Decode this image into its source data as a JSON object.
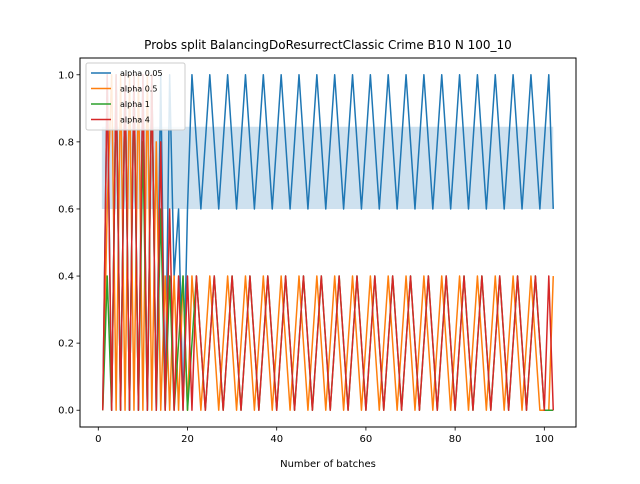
{
  "chart_data": {
    "type": "line",
    "title": "Probs split BalancingDoResurrectClassic Crime B10 N 100_10",
    "xlabel": "Number of batches",
    "ylabel": "",
    "xlim": [
      -4.1,
      107.1
    ],
    "ylim": [
      -0.05,
      1.05
    ],
    "xticks": [
      0,
      20,
      40,
      60,
      80,
      100
    ],
    "xtick_labels": [
      "0",
      "20",
      "40",
      "60",
      "80",
      "100"
    ],
    "yticks": [
      0.0,
      0.2,
      0.4,
      0.6,
      0.8,
      1.0
    ],
    "ytick_labels": [
      "0.0",
      "0.2",
      "0.4",
      "0.6",
      "0.8",
      "1.0"
    ],
    "grid": false,
    "legend_position": "upper left",
    "series": [
      {
        "name": "alpha 0.05",
        "color": "#1f77b4",
        "x": [
          1,
          2,
          3,
          4,
          5,
          6,
          7,
          8,
          9,
          10,
          11,
          12,
          13,
          14,
          15,
          16,
          17,
          18,
          19,
          20,
          21,
          23,
          25,
          27,
          29,
          31,
          33,
          35,
          37,
          39,
          41,
          43,
          45,
          47,
          49,
          51,
          53,
          55,
          57,
          59,
          61,
          63,
          65,
          67,
          69,
          71,
          73,
          75,
          77,
          79,
          81,
          83,
          85,
          87,
          89,
          91,
          93,
          95,
          97,
          99,
          101,
          102
        ],
        "y": [
          0.0,
          1.0,
          0.0,
          1.0,
          0.0,
          1.0,
          0.0,
          1.0,
          0.0,
          1.0,
          0.0,
          1.0,
          0.0,
          1.0,
          0.0,
          1.0,
          0.4,
          0.6,
          0.0,
          0.6,
          1.0,
          0.6,
          1.0,
          0.6,
          1.0,
          0.6,
          1.0,
          0.6,
          1.0,
          0.6,
          1.0,
          0.6,
          1.0,
          0.6,
          1.0,
          0.6,
          1.0,
          0.6,
          1.0,
          0.6,
          1.0,
          0.6,
          1.0,
          0.6,
          1.0,
          0.6,
          1.0,
          0.6,
          1.0,
          0.6,
          1.0,
          0.6,
          1.0,
          0.6,
          1.0,
          0.6,
          1.0,
          0.6,
          1.0,
          0.6,
          1.0,
          0.6
        ],
        "band": {
          "x": [
            0.8,
            102
          ],
          "lower": [
            0.6,
            0.6
          ],
          "upper": [
            0.845,
            0.845
          ]
        }
      },
      {
        "name": "alpha 0.5",
        "color": "#ff7f0e",
        "x": [
          1,
          2,
          3,
          4,
          5,
          6,
          7,
          8,
          9,
          10,
          11,
          12,
          13,
          14,
          15,
          16,
          17,
          18,
          19,
          20,
          21,
          23,
          25,
          27,
          29,
          31,
          33,
          35,
          37,
          39,
          41,
          43,
          45,
          47,
          49,
          51,
          53,
          55,
          57,
          59,
          61,
          63,
          65,
          67,
          69,
          71,
          73,
          75,
          77,
          79,
          81,
          83,
          85,
          87,
          89,
          91,
          93,
          95,
          97,
          99,
          101,
          102
        ],
        "y": [
          0.0,
          0.6,
          1.0,
          0.0,
          1.0,
          0.0,
          1.0,
          0.0,
          1.0,
          0.0,
          1.0,
          0.0,
          0.8,
          0.0,
          0.4,
          0.0,
          0.4,
          0.0,
          0.4,
          0.0,
          0.4,
          0.0,
          0.4,
          0.0,
          0.4,
          0.0,
          0.4,
          0.0,
          0.4,
          0.0,
          0.4,
          0.0,
          0.4,
          0.0,
          0.4,
          0.0,
          0.4,
          0.0,
          0.4,
          0.0,
          0.4,
          0.0,
          0.4,
          0.0,
          0.4,
          0.0,
          0.4,
          0.0,
          0.4,
          0.0,
          0.4,
          0.0,
          0.4,
          0.0,
          0.4,
          0.0,
          0.4,
          0.0,
          0.4,
          0.0,
          0.0,
          0.4
        ]
      },
      {
        "name": "alpha 1",
        "color": "#2ca02c",
        "x": [
          1,
          2,
          3,
          4,
          5,
          6,
          7,
          8,
          9,
          10,
          11,
          12,
          13,
          14,
          15,
          16,
          17,
          18,
          19,
          20,
          22,
          24,
          26,
          28,
          30,
          32,
          34,
          36,
          38,
          40,
          42,
          44,
          46,
          48,
          50,
          52,
          54,
          56,
          58,
          60,
          62,
          64,
          66,
          68,
          70,
          72,
          74,
          76,
          78,
          80,
          82,
          84,
          86,
          88,
          90,
          92,
          94,
          96,
          98,
          100,
          102
        ],
        "y": [
          0.0,
          0.4,
          0.0,
          1.0,
          0.0,
          1.0,
          0.0,
          1.0,
          0.0,
          0.8,
          0.0,
          1.0,
          0.0,
          0.6,
          0.0,
          0.4,
          0.0,
          0.2,
          0.4,
          0.0,
          0.4,
          0.0,
          0.4,
          0.0,
          0.4,
          0.0,
          0.4,
          0.0,
          0.4,
          0.0,
          0.4,
          0.0,
          0.4,
          0.0,
          0.4,
          0.0,
          0.4,
          0.0,
          0.4,
          0.0,
          0.4,
          0.0,
          0.4,
          0.0,
          0.4,
          0.0,
          0.4,
          0.0,
          0.4,
          0.0,
          0.4,
          0.0,
          0.4,
          0.0,
          0.4,
          0.0,
          0.4,
          0.0,
          0.4,
          0.0,
          0.0
        ]
      },
      {
        "name": "alpha 4",
        "color": "#d62728",
        "x": [
          1,
          2,
          3,
          4,
          5,
          6,
          7,
          8,
          9,
          10,
          11,
          12,
          13,
          14,
          15,
          16,
          17,
          18,
          19,
          20,
          21,
          22,
          24,
          26,
          28,
          30,
          32,
          34,
          36,
          38,
          40,
          42,
          44,
          46,
          48,
          50,
          52,
          54,
          56,
          58,
          60,
          62,
          64,
          66,
          68,
          70,
          72,
          74,
          76,
          78,
          80,
          82,
          84,
          86,
          88,
          90,
          92,
          94,
          96,
          98,
          100,
          101,
          102
        ],
        "y": [
          0.0,
          1.0,
          0.0,
          1.0,
          0.0,
          1.0,
          0.0,
          1.0,
          0.0,
          1.0,
          0.0,
          1.0,
          0.0,
          0.8,
          0.0,
          0.6,
          0.0,
          0.4,
          0.0,
          0.4,
          0.0,
          0.4,
          0.0,
          0.4,
          0.0,
          0.4,
          0.0,
          0.4,
          0.0,
          0.4,
          0.0,
          0.4,
          0.0,
          0.4,
          0.0,
          0.4,
          0.0,
          0.4,
          0.0,
          0.4,
          0.0,
          0.4,
          0.0,
          0.4,
          0.0,
          0.4,
          0.0,
          0.4,
          0.0,
          0.4,
          0.0,
          0.4,
          0.0,
          0.4,
          0.0,
          0.4,
          0.0,
          0.4,
          0.0,
          0.4,
          0.0,
          0.4,
          0.0
        ]
      }
    ]
  }
}
